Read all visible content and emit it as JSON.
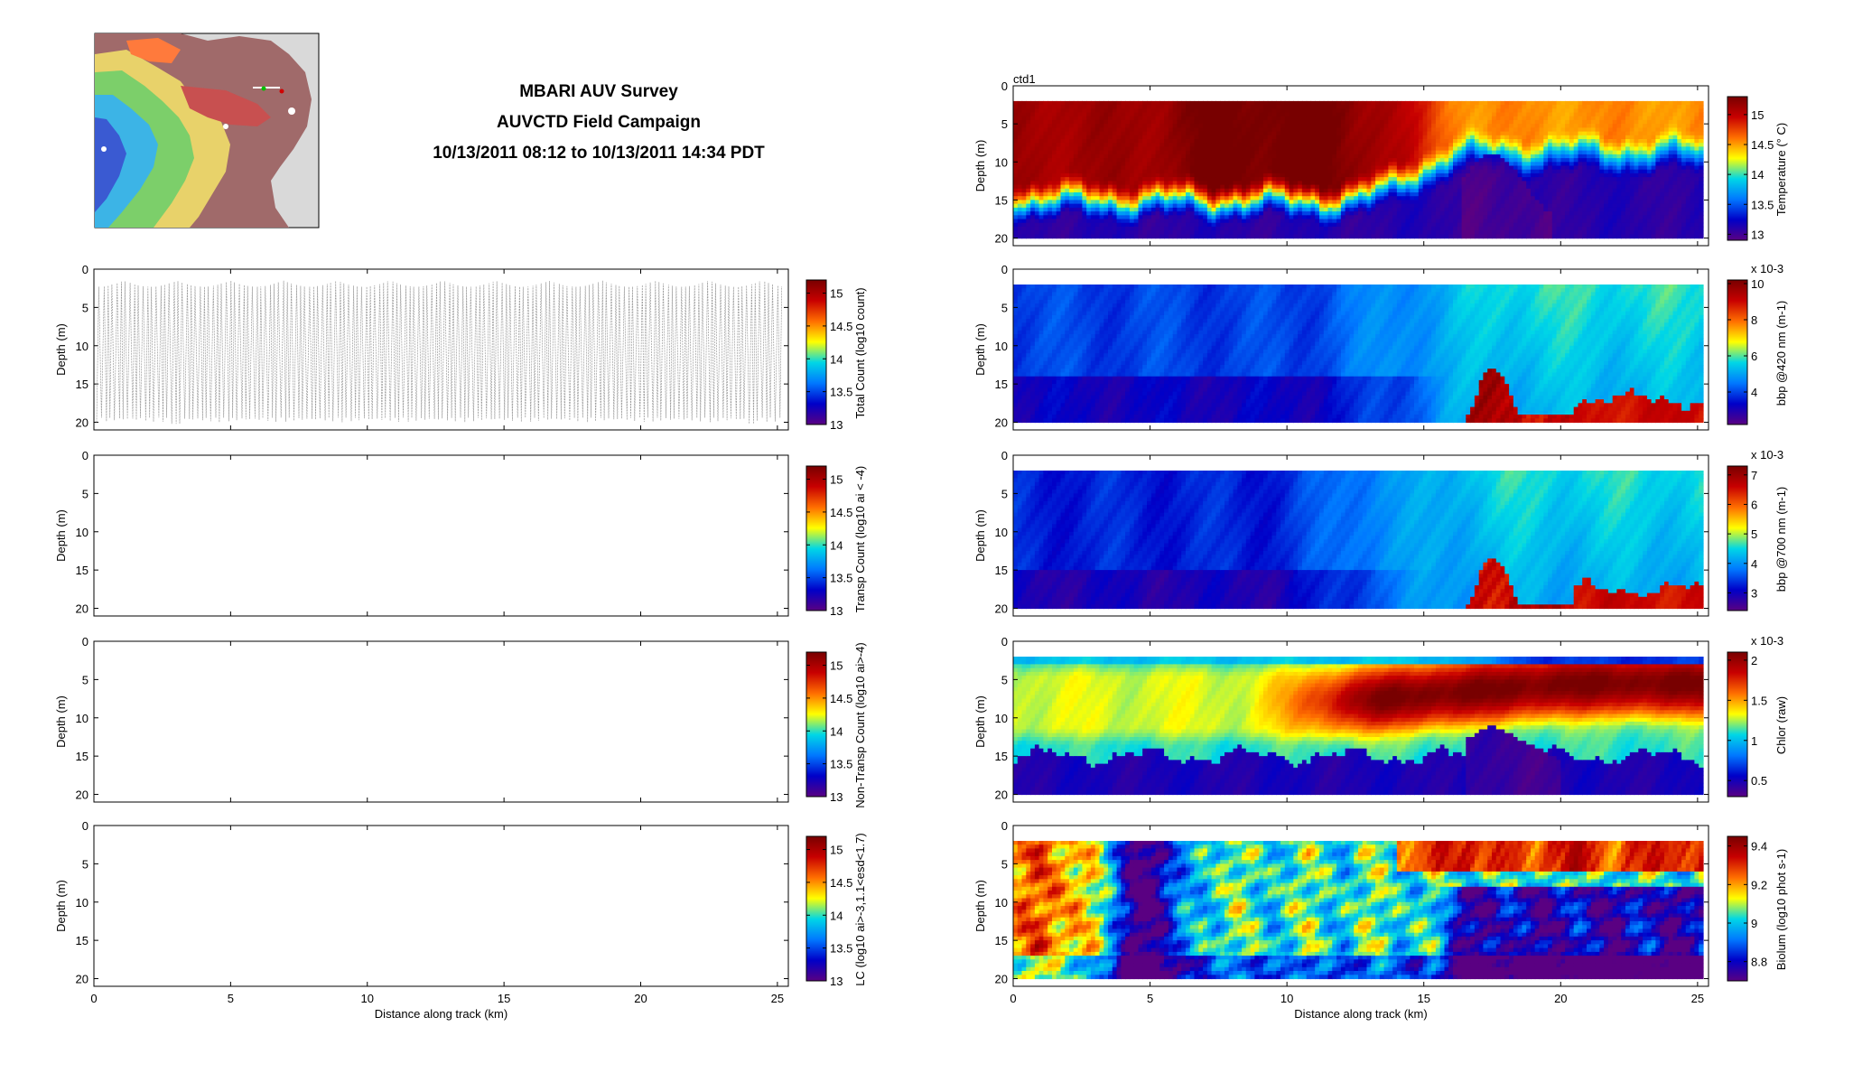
{
  "title": {
    "line1": "MBARI AUV Survey",
    "line2": "AUVCTD Field Campaign",
    "line3": "10/13/2011 08:12 to 10/13/2011 14:34 PDT"
  },
  "map": {
    "name": "survey-map-inset"
  },
  "axes": {
    "xlabel": "Distance along track (km)",
    "ylabel": "Depth (m)",
    "x_ticks": [
      0,
      5,
      10,
      15,
      20,
      25
    ],
    "y_ticks": [
      0,
      5,
      10,
      15,
      20
    ],
    "xlim": [
      0,
      25.4
    ],
    "ylim": [
      0,
      21
    ]
  },
  "chart_data": [
    {
      "type": "scatter",
      "panel": "left-1",
      "description_label": "Total Count",
      "colorbar_label": "Total Count (log10 count)",
      "colorbar_ticks": [
        "13",
        "13.5",
        "14",
        "14.5",
        "15"
      ],
      "colorbar_range": [
        13,
        15.2
      ],
      "content": "profile-track",
      "track": {
        "depth_range": [
          1.5,
          20
        ],
        "profile_spacing_km": 0.08
      }
    },
    {
      "type": "heatmap",
      "panel": "left-2",
      "colorbar_label": "Transp Count (log10 ai < -4)",
      "colorbar_ticks": [
        "13",
        "13.5",
        "14",
        "14.5",
        "15"
      ],
      "colorbar_range": [
        13,
        15.2
      ],
      "content": "empty"
    },
    {
      "type": "heatmap",
      "panel": "left-3",
      "colorbar_label": "Non-Transp Count (log10 ai>-4)",
      "colorbar_ticks": [
        "13",
        "13.5",
        "14",
        "14.5",
        "15"
      ],
      "colorbar_range": [
        13,
        15.2
      ],
      "content": "empty"
    },
    {
      "type": "heatmap",
      "panel": "left-4",
      "colorbar_label": "LC (log10 ai>-3,1.1<esd<1.7)",
      "colorbar_ticks": [
        "13",
        "13.5",
        "14",
        "14.5",
        "15"
      ],
      "colorbar_range": [
        13,
        15.2
      ],
      "content": "empty"
    },
    {
      "type": "heatmap",
      "panel": "right-1",
      "annotation": "ctd1",
      "colorbar_label": "Temperature (° C)",
      "colorbar_ticks": [
        "13",
        "13.5",
        "14",
        "14.5",
        "15"
      ],
      "colorbar_range": [
        12.9,
        15.3
      ],
      "field": "temperature",
      "data_depth_range": [
        2,
        20
      ]
    },
    {
      "type": "heatmap",
      "panel": "right-2",
      "colorbar_label": "bbp @420 nm (m-1)",
      "colorbar_exponent": "x 10-3",
      "colorbar_ticks": [
        "4",
        "6",
        "8",
        "10"
      ],
      "colorbar_range": [
        2.2,
        10.2
      ],
      "field": "bbp420",
      "data_depth_range": [
        2,
        20
      ]
    },
    {
      "type": "heatmap",
      "panel": "right-3",
      "colorbar_label": "bbp @700 nm (m-1)",
      "colorbar_exponent": "x 10-3",
      "colorbar_ticks": [
        "3",
        "4",
        "5",
        "6",
        "7"
      ],
      "colorbar_range": [
        2.4,
        7.3
      ],
      "field": "bbp700",
      "data_depth_range": [
        2,
        20
      ]
    },
    {
      "type": "heatmap",
      "panel": "right-4",
      "colorbar_label": "Chlor (raw)",
      "colorbar_exponent": "x 10-3",
      "colorbar_ticks": [
        "0.5",
        "1",
        "1.5",
        "2"
      ],
      "colorbar_range": [
        0.3,
        2.1
      ],
      "field": "chlorophyll",
      "data_depth_range": [
        2,
        20
      ]
    },
    {
      "type": "heatmap",
      "panel": "right-5",
      "colorbar_label": "Biolum (log10 phot s-1)",
      "colorbar_ticks": [
        "8.8",
        "9",
        "9.2",
        "9.4"
      ],
      "colorbar_range": [
        8.7,
        9.45
      ],
      "field": "bioluminescence",
      "data_depth_range": [
        2,
        20
      ]
    }
  ],
  "colormap": [
    "#5a0082",
    "#0000c8",
    "#0078ff",
    "#00d7e6",
    "#ffff00",
    "#ff6e00",
    "#c80000",
    "#780000"
  ]
}
